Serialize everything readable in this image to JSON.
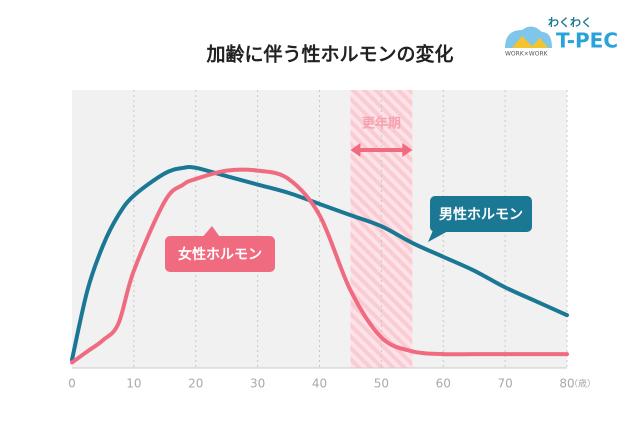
{
  "logo": {
    "top": "わくわく",
    "main": "T-PEC",
    "sub": "WORK×WORK"
  },
  "chart_data": {
    "type": "line",
    "title": "加齢に伴う性ホルモンの変化",
    "xlabel": "（歳）",
    "x": [
      0,
      2.5,
      5,
      7.5,
      10,
      15,
      18,
      20,
      25,
      30,
      35,
      40,
      45,
      50,
      55,
      60,
      65,
      70,
      75,
      80
    ],
    "xlim": [
      0,
      80
    ],
    "xticks": [
      0,
      10,
      20,
      30,
      40,
      50,
      60,
      70,
      80
    ],
    "ylim": [
      0,
      100
    ],
    "grid": true,
    "band": {
      "label": "更年期",
      "range": [
        45,
        55
      ],
      "color": "#f5a3b0"
    },
    "series": [
      {
        "name": "男性ホルモン",
        "color": "#1b7895",
        "values": [
          3,
          28,
          44,
          55,
          62,
          70,
          72,
          72,
          69,
          66,
          63,
          59,
          55,
          51,
          45,
          40,
          35,
          29,
          24,
          19
        ]
      },
      {
        "name": "女性ホルモン",
        "color": "#f06b80",
        "values": [
          2,
          6,
          10,
          16,
          35,
          60,
          66,
          68,
          71,
          71,
          68,
          55,
          28,
          11,
          6,
          5,
          5,
          5,
          5,
          5
        ]
      }
    ]
  }
}
